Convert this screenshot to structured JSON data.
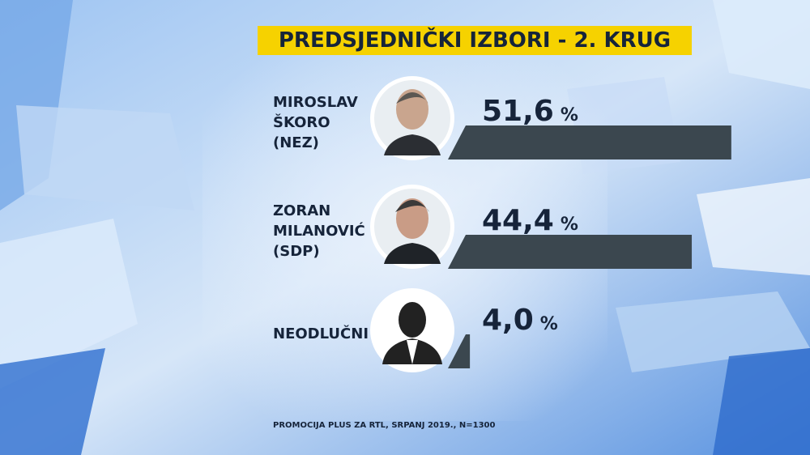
{
  "chart_data": {
    "type": "bar",
    "title": "PREDSJEDNIČKI IZBORI - 2. KRUG",
    "categories": [
      [
        "MIROSLAV",
        "ŠKORO",
        "(NEZ)"
      ],
      [
        "ZORAN",
        "MILANOVIĆ",
        "(SDP)"
      ],
      [
        "NEODLUČNI"
      ]
    ],
    "values": [
      51.6,
      44.4,
      4.0
    ],
    "value_labels": [
      "51,6",
      "44,4",
      "4,0"
    ],
    "unit": "%",
    "color": "#3b474f",
    "source": "PROMOCIJA PLUS ZA RTL, SRPANJ 2019., N=1300"
  }
}
